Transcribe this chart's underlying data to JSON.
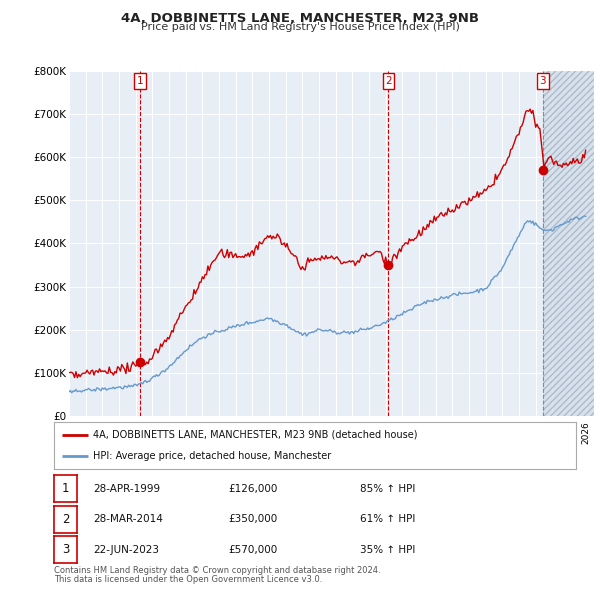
{
  "title": "4A, DOBBINETTS LANE, MANCHESTER, M23 9NB",
  "subtitle": "Price paid vs. HM Land Registry's House Price Index (HPI)",
  "sale_info": [
    {
      "num": "1",
      "date": "28-APR-1999",
      "price": "£126,000",
      "hpi": "85% ↑ HPI",
      "year": 1999,
      "month": 4,
      "price_val": 126000
    },
    {
      "num": "2",
      "date": "28-MAR-2014",
      "price": "£350,000",
      "hpi": "61% ↑ HPI",
      "year": 2014,
      "month": 3,
      "price_val": 350000
    },
    {
      "num": "3",
      "date": "22-JUN-2023",
      "price": "£570,000",
      "hpi": "35% ↑ HPI",
      "year": 2023,
      "month": 6,
      "price_val": 570000
    }
  ],
  "legend_line1": "4A, DOBBINETTS LANE, MANCHESTER, M23 9NB (detached house)",
  "legend_line2": "HPI: Average price, detached house, Manchester",
  "footer1": "Contains HM Land Registry data © Crown copyright and database right 2024.",
  "footer2": "This data is licensed under the Open Government Licence v3.0.",
  "red_color": "#cc0000",
  "blue_color": "#6699cc",
  "blue_light": "#c8d8ee",
  "background_color": "#ffffff",
  "chart_bg": "#e8eef6",
  "grid_color": "#ffffff",
  "ylim_max": 800000,
  "seed": 42
}
